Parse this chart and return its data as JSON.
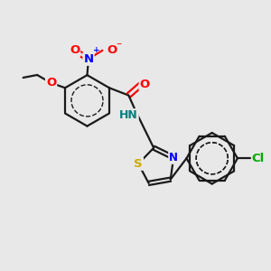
{
  "background_color": "#e8e8e8",
  "bond_color": "#1a1a1a",
  "bond_width": 1.6,
  "atom_colors": {
    "O": "#ff0000",
    "N_blue": "#0000ff",
    "N_green": "#008080",
    "S": "#ccaa00",
    "Cl": "#00aa00",
    "C": "#1a1a1a"
  },
  "font_size": 8.5,
  "figsize": [
    3.0,
    3.0
  ],
  "dpi": 100,
  "xlim": [
    0,
    10
  ],
  "ylim": [
    0,
    10
  ]
}
